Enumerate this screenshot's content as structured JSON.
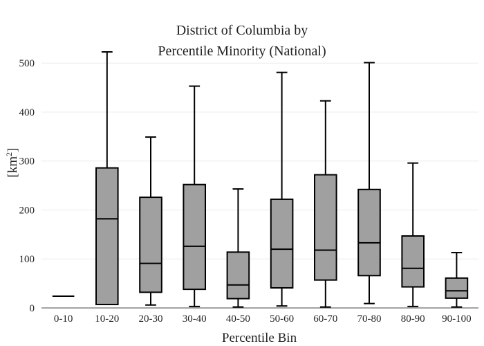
{
  "chart_data": {
    "type": "box",
    "title": [
      "District of Columbia  by",
      "Percentile Minority (National)"
    ],
    "xlabel": "Percentile Bin",
    "ylabel": "[km",
    "ylabel_superscript": "2",
    "ylabel_close": "]",
    "ylim": [
      0,
      530
    ],
    "yticks": [
      0,
      100,
      200,
      300,
      400,
      500
    ],
    "grid": true,
    "categories": [
      "0-10",
      "10-20",
      "20-30",
      "30-40",
      "40-50",
      "50-60",
      "60-70",
      "70-80",
      "80-90",
      "90-100"
    ],
    "boxes": [
      {
        "min": 24,
        "q1": 24,
        "median": 24,
        "q3": 24,
        "max": 24
      },
      {
        "min": 7,
        "q1": 7,
        "median": 182,
        "q3": 286,
        "max": 523
      },
      {
        "min": 6,
        "q1": 32,
        "median": 91,
        "q3": 226,
        "max": 349
      },
      {
        "min": 3,
        "q1": 38,
        "median": 126,
        "q3": 252,
        "max": 453
      },
      {
        "min": 2,
        "q1": 19,
        "median": 47,
        "q3": 114,
        "max": 243
      },
      {
        "min": 4,
        "q1": 41,
        "median": 120,
        "q3": 222,
        "max": 481
      },
      {
        "min": 2,
        "q1": 57,
        "median": 118,
        "q3": 272,
        "max": 423
      },
      {
        "min": 9,
        "q1": 66,
        "median": 133,
        "q3": 242,
        "max": 501
      },
      {
        "min": 3,
        "q1": 43,
        "median": 81,
        "q3": 147,
        "max": 296
      },
      {
        "min": 2,
        "q1": 20,
        "median": 35,
        "q3": 61,
        "max": 113
      }
    ],
    "colors": {
      "box_fill": "#a0a0a0",
      "stroke": "#000000",
      "grid": "#ececec"
    }
  }
}
